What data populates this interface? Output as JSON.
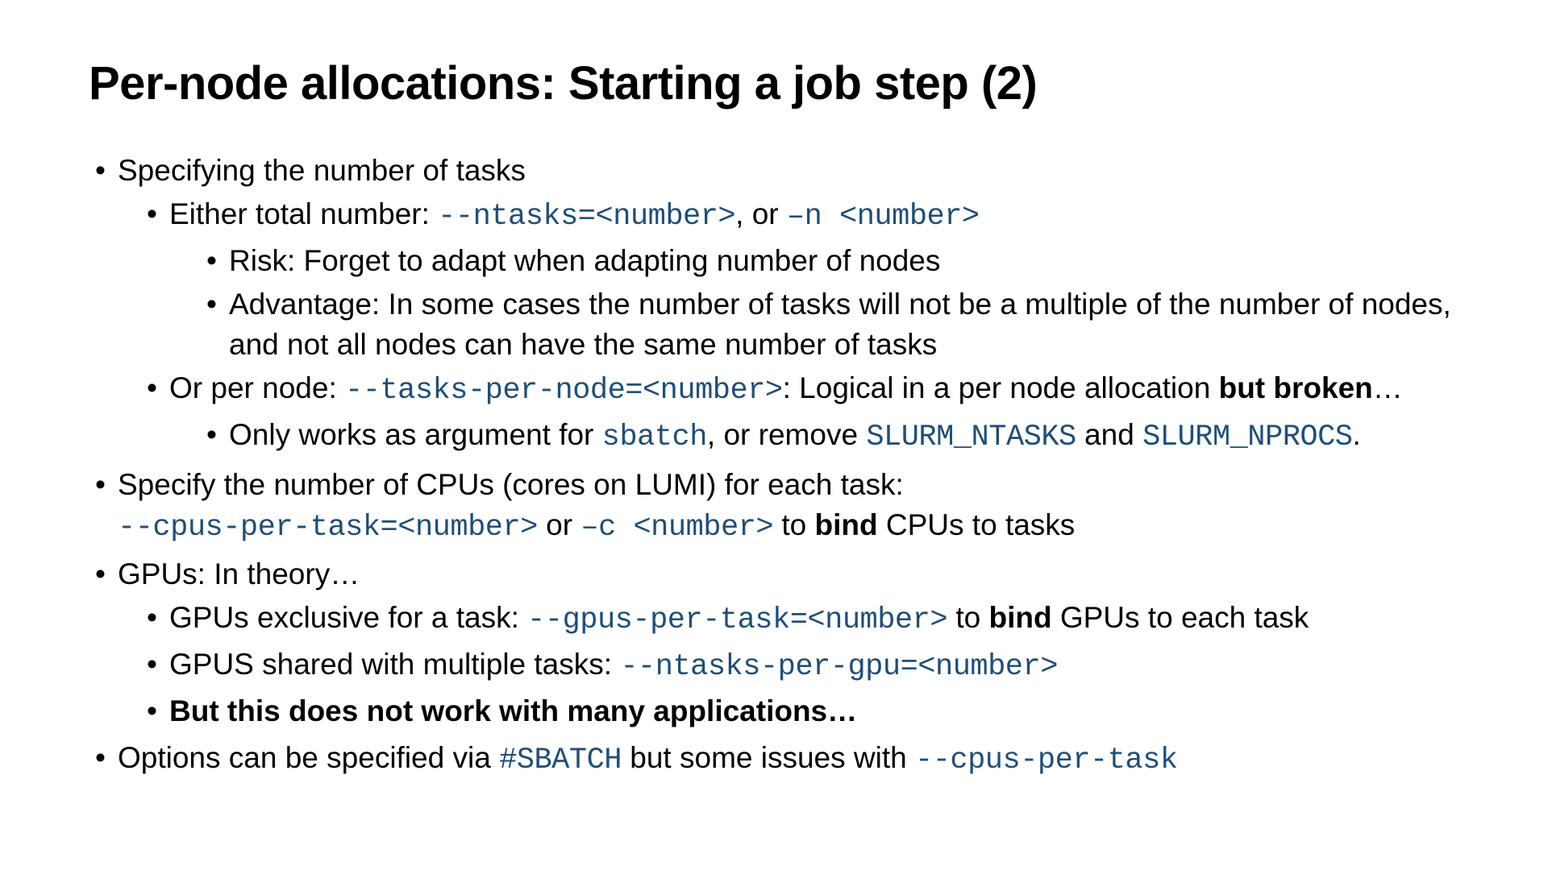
{
  "colors": {
    "text": "#000000",
    "code": "#1f4e79",
    "background": "#ffffff"
  },
  "title": "Per-node allocations: Starting a job step (2)",
  "b1": {
    "t1": "Specifying the number of tasks",
    "b1_1": {
      "pre": "Either total number: ",
      "code1": "--ntasks=<number>",
      "mid": ", or ",
      "code2": "–n <number>"
    },
    "b1_1_1": "Risk: Forget to adapt when adapting number of nodes",
    "b1_1_2": "Advantage: In some cases the number of tasks will not be a multiple of the number of nodes, and not all nodes can have the same number of tasks",
    "b1_2": {
      "pre": "Or per node: ",
      "code": "--tasks-per-node=<number>",
      "mid": ": Logical in a per node allocation ",
      "bold": "but broken",
      "tail": "…"
    },
    "b1_2_1": {
      "pre": "Only works as argument for ",
      "c1": "sbatch",
      "m1": ", or remove ",
      "c2": "SLURM_NTASKS",
      "m2": " and ",
      "c3": "SLURM_NPROCS",
      "tail": "."
    }
  },
  "b2": {
    "line1": "Specify the number of CPUs (cores on LUMI) for each task:",
    "code1": "--cpus-per-task=<number>",
    "mid": " or ",
    "code2": "–c <number>",
    "m2": " to ",
    "bold": "bind",
    "tail": " CPUs to tasks"
  },
  "b3": {
    "t": "GPUs: In theory…",
    "s1": {
      "pre": "GPUs exclusive for a task: ",
      "code": "--gpus-per-task=<number>",
      "m": " to ",
      "bold": "bind",
      "tail": " GPUs to each task"
    },
    "s2": {
      "pre": "GPUS shared with multiple tasks: ",
      "code": "--ntasks-per-gpu=<number>"
    },
    "s3": "But this does not work with many applications…"
  },
  "b4": {
    "pre": "Options can be specified via ",
    "c1": "#SBATCH",
    "mid": " but some issues with ",
    "c2": "--cpus-per-task"
  }
}
